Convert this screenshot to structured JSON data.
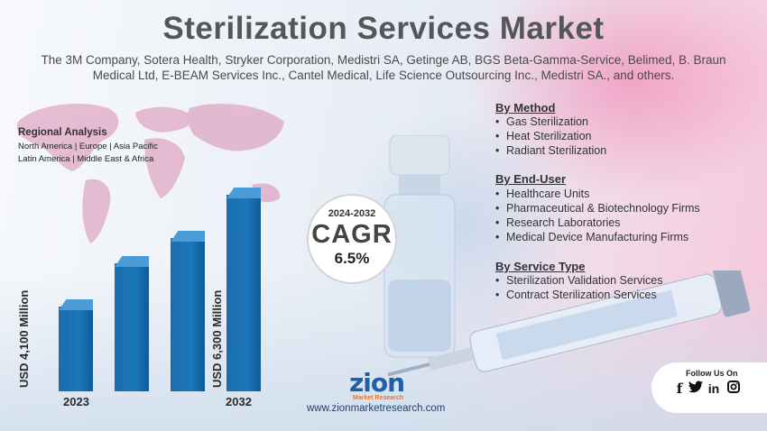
{
  "title": "Sterilization Services Market",
  "subtitle_line1": "The 3M Company, Sotera Health, Stryker Corporation, Medistri SA, Getinge AB, BGS Beta-Gamma-Service, Belimed, B. Braun",
  "subtitle_line2": "Medical Ltd, E-BEAM Services Inc., Cantel Medical, Life Science Outsourcing Inc., Medistri SA., and others.",
  "regional": {
    "title": "Regional Analysis",
    "line1": "North America |     Europe | Asia Pacific",
    "line2": "Latin America  | Middle East & Africa"
  },
  "bars": {
    "start_label": "USD 4,100 Million",
    "end_label": "USD 6,300 Million",
    "start_year": "2023",
    "end_year": "2032",
    "color": "#1b6fb3",
    "levels": [
      0.43,
      0.65,
      0.78,
      1.0
    ]
  },
  "cagr": {
    "period": "2024-2032",
    "label": "CAGR",
    "value": "6.5%"
  },
  "segments": [
    {
      "title": "By Method",
      "items": [
        "Gas Sterilization",
        "Heat Sterilization",
        "Radiant Sterilization"
      ]
    },
    {
      "title": "By End-User",
      "items": [
        "Healthcare Units",
        "Pharmaceutical & Biotechnology Firms",
        "Research Laboratories",
        "Medical Device Manufacturing Firms"
      ]
    },
    {
      "title": "By Service Type",
      "items": [
        "Sterilization Validation Services",
        "Contract Sterilization Services"
      ]
    }
  ],
  "logo": {
    "name": "zion",
    "tagline": "Market Research"
  },
  "website": "www.zionmarketresearch.com",
  "follow": {
    "title": "Follow Us On",
    "icons": [
      "facebook-icon",
      "twitter-icon",
      "linkedin-icon",
      "instagram-icon"
    ]
  }
}
